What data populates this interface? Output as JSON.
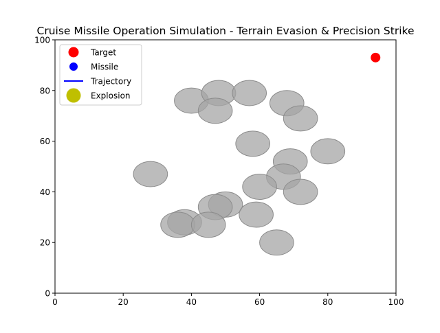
{
  "chart_data": {
    "type": "scatter",
    "title": "Cruise Missile Operation Simulation - Terrain Evasion & Precision Strike",
    "xlabel": "",
    "ylabel": "",
    "xlim": [
      0,
      100
    ],
    "ylim": [
      0,
      100
    ],
    "x_ticks": [
      0,
      20,
      40,
      60,
      80,
      100
    ],
    "y_ticks": [
      0,
      20,
      40,
      60,
      80,
      100
    ],
    "grid": false,
    "legend_position": "top-left",
    "colors": {
      "target": "#ff0000",
      "missile": "#0000ff",
      "trajectory": "#0000ff",
      "explosion": "#bfbf00",
      "obstacle_fill": "#a6a6a6",
      "obstacle_edge": "#8c8c8c"
    },
    "legend": [
      {
        "label": "Target",
        "kind": "marker",
        "color_key": "target"
      },
      {
        "label": "Missile",
        "kind": "marker-small",
        "color_key": "missile"
      },
      {
        "label": "Trajectory",
        "kind": "line",
        "color_key": "trajectory"
      },
      {
        "label": "Explosion",
        "kind": "marker-large",
        "color_key": "explosion"
      }
    ],
    "target": {
      "x": 94,
      "y": 93
    },
    "missile": [],
    "trajectory": [],
    "explosion": [],
    "obstacles": [
      {
        "x": 40,
        "y": 76
      },
      {
        "x": 48,
        "y": 79
      },
      {
        "x": 57,
        "y": 79
      },
      {
        "x": 47,
        "y": 72
      },
      {
        "x": 68,
        "y": 75
      },
      {
        "x": 72,
        "y": 69
      },
      {
        "x": 58,
        "y": 59
      },
      {
        "x": 80,
        "y": 56
      },
      {
        "x": 69,
        "y": 52
      },
      {
        "x": 28,
        "y": 47
      },
      {
        "x": 67,
        "y": 46
      },
      {
        "x": 60,
        "y": 42
      },
      {
        "x": 72,
        "y": 40
      },
      {
        "x": 50,
        "y": 35
      },
      {
        "x": 47,
        "y": 34
      },
      {
        "x": 59,
        "y": 31
      },
      {
        "x": 38,
        "y": 28
      },
      {
        "x": 36,
        "y": 27
      },
      {
        "x": 45,
        "y": 27
      },
      {
        "x": 65,
        "y": 20
      }
    ],
    "obstacle_radius": 5
  }
}
